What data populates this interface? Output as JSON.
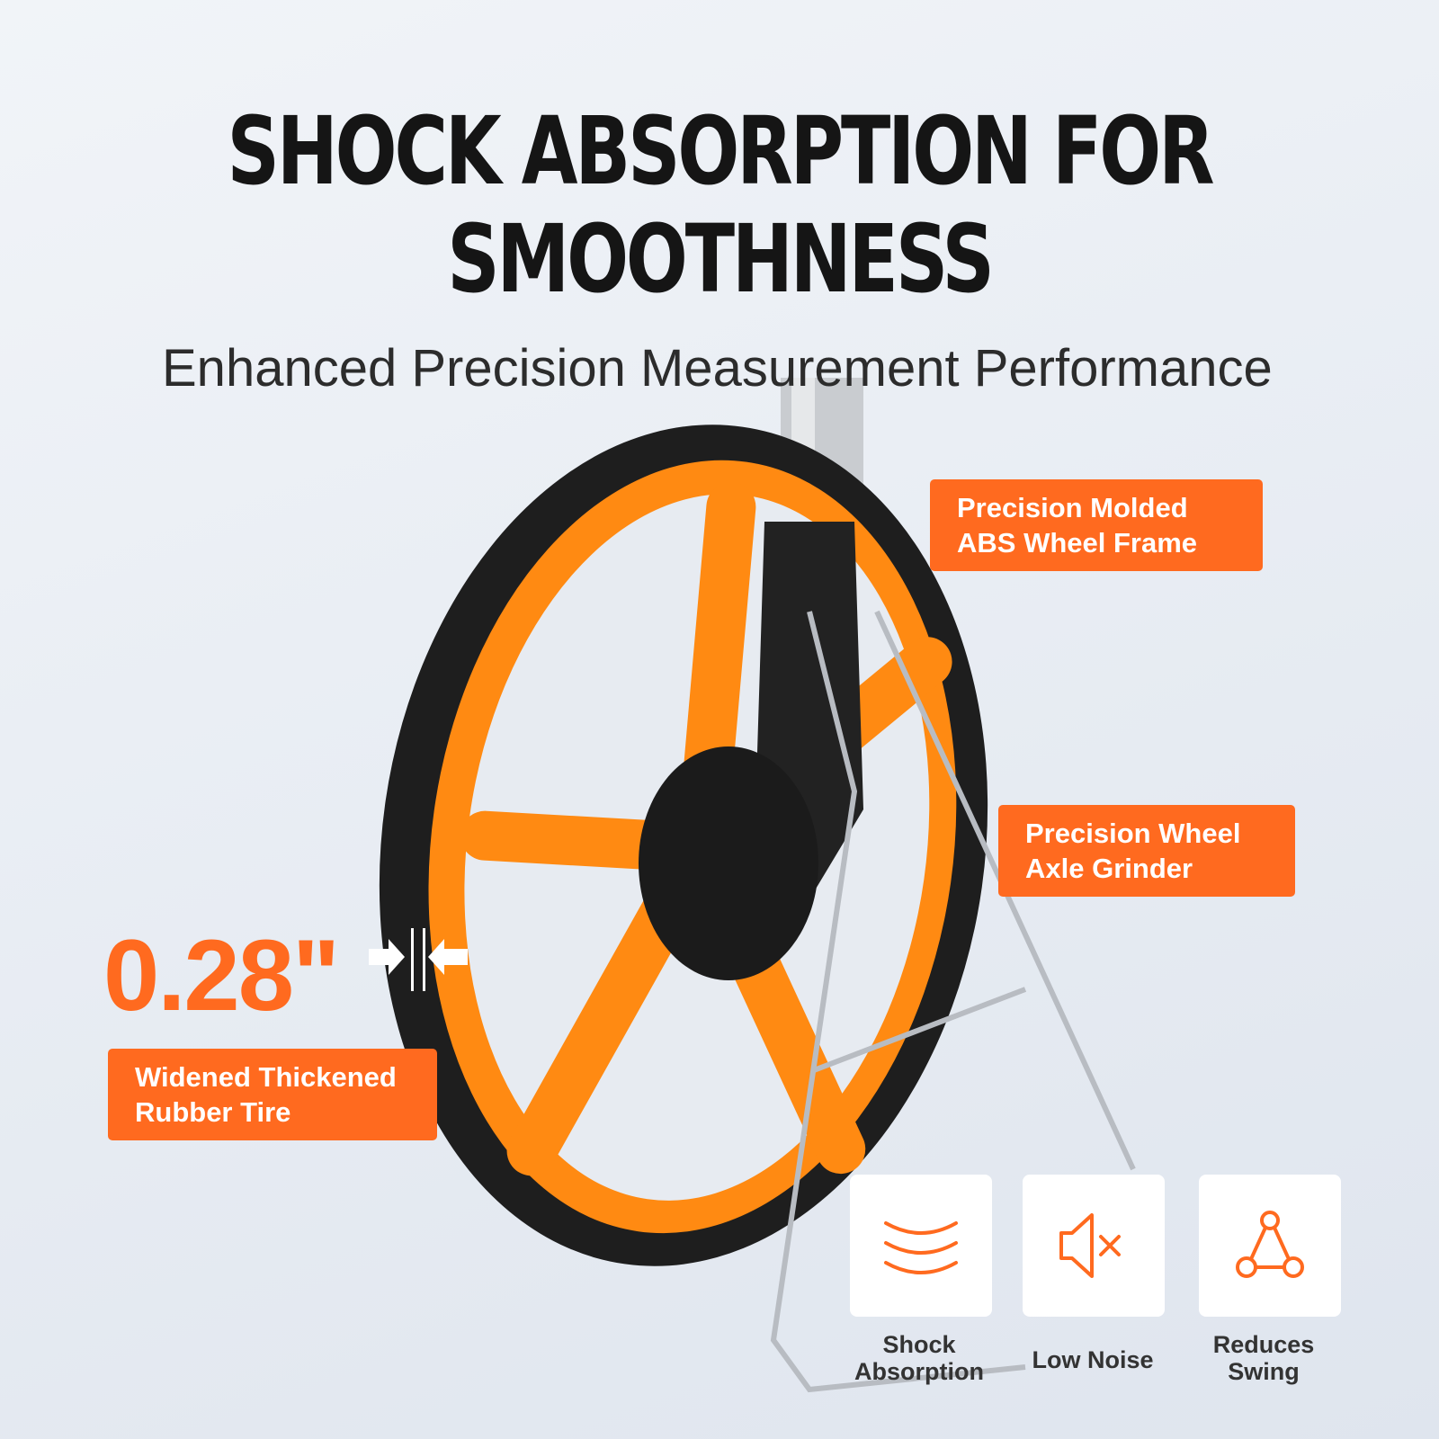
{
  "headline": {
    "line1": "SHOCK ABSORPTION FOR",
    "line2": "SMOOTHNESS"
  },
  "subtitle": "Enhanced Precision Measurement Performance",
  "callouts": [
    {
      "line1": "Precision Molded",
      "line2": "ABS Wheel Frame"
    },
    {
      "line1": "Precision Wheel",
      "line2": "Axle Grinder"
    },
    {
      "line1": "Widened Thickened",
      "line2": "Rubber Tire"
    }
  ],
  "tire_thickness": "0.28\"",
  "features": [
    {
      "icon": "waves-icon",
      "line1": "Shock",
      "line2": "Absorption"
    },
    {
      "icon": "mute-speaker-icon",
      "line1": "Low Noise",
      "line2": ""
    },
    {
      "icon": "triangle-nodes-icon",
      "line1": "Reduces",
      "line2": "Swing"
    }
  ],
  "colors": {
    "accent": "#ff6a1f",
    "wheel": "#ff8a12",
    "tire": "#1e1e1e",
    "text": "#151515"
  }
}
